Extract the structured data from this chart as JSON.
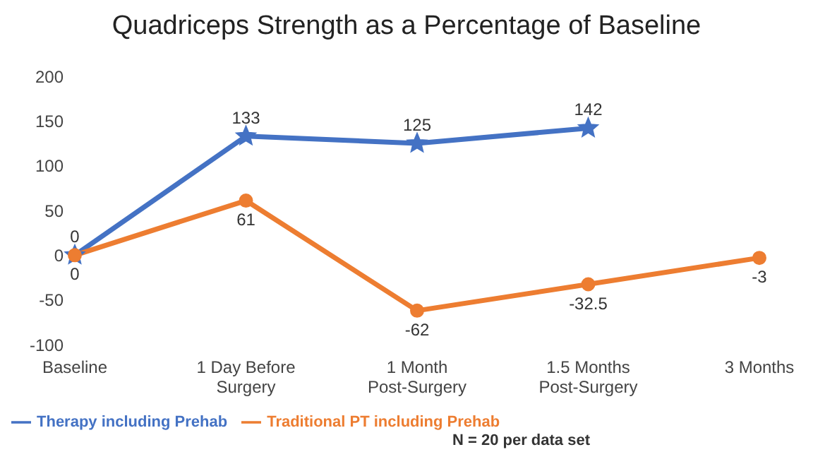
{
  "chart_data": {
    "type": "line",
    "title": "Quadriceps Strength as a Percentage of Baseline",
    "categories": [
      "Baseline",
      "1 Day  Before Surgery",
      "1 Month Post-Surgery",
      "1.5 Months Post-Surgery",
      "3 Months"
    ],
    "series": [
      {
        "name": "Therapy including Prehab",
        "color": "#4472c4",
        "marker": "star",
        "values": [
          0,
          133,
          125,
          142,
          null
        ]
      },
      {
        "name": "Traditional PT including Prehab",
        "color": "#ed7d31",
        "marker": "circle",
        "values": [
          0,
          61,
          -62,
          -32.5,
          -3
        ]
      }
    ],
    "ylim": [
      -100,
      200
    ],
    "yticks": [
      -100,
      -50,
      0,
      50,
      100,
      150,
      200
    ],
    "grid": false,
    "legend": "bottom left",
    "data_labels": true,
    "annotations": [
      "N = 20 per data set"
    ]
  }
}
